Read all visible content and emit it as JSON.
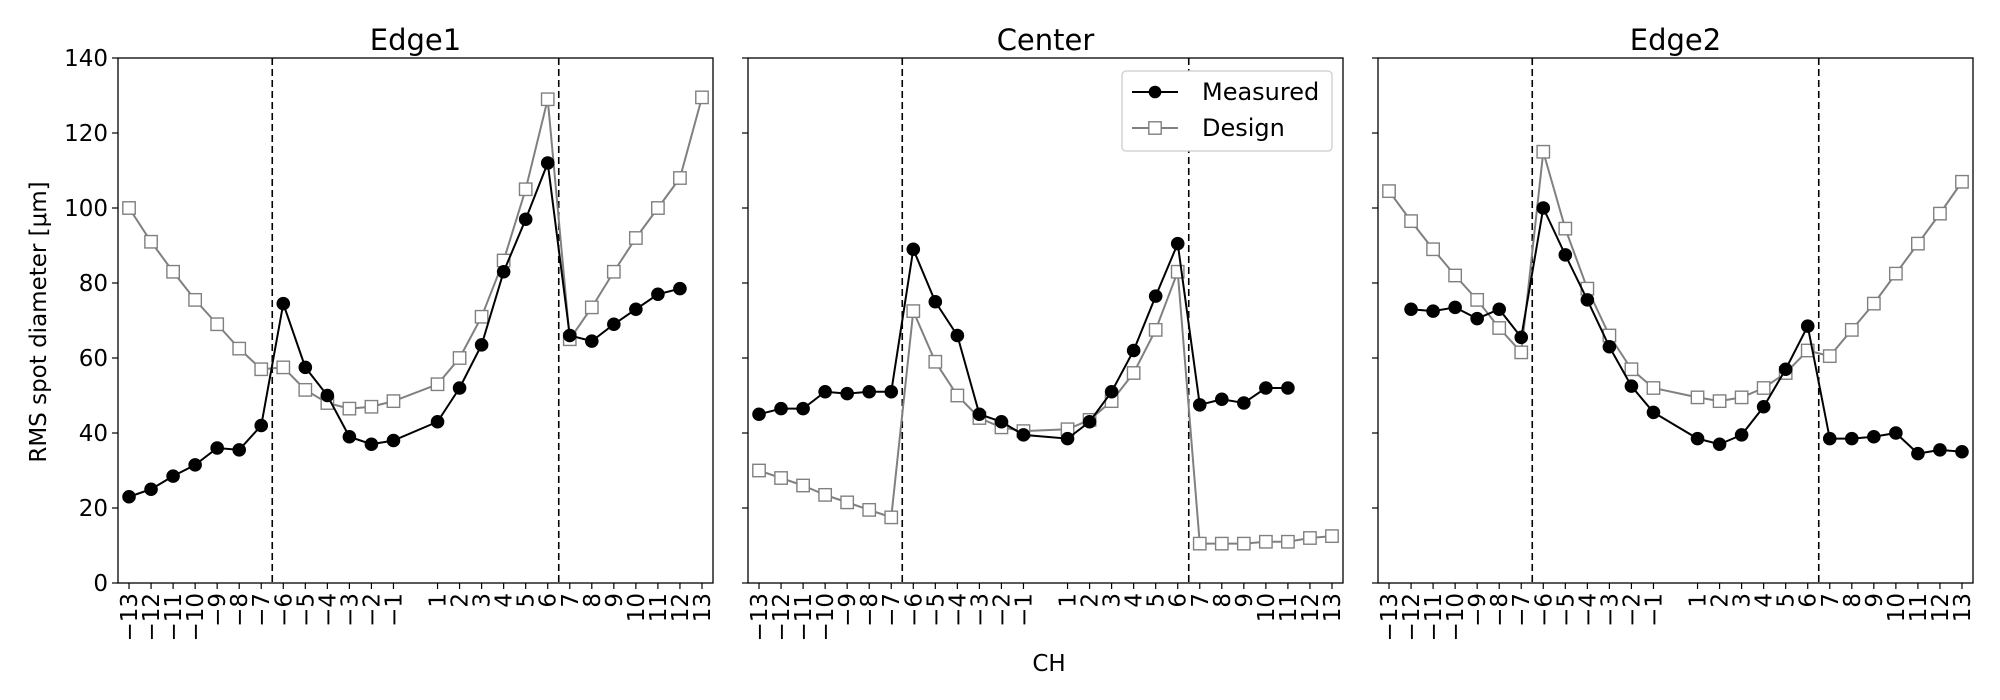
{
  "figure": {
    "ylabel": "RMS spot diameter [μm]",
    "xlabel": "CH"
  },
  "colors": {
    "measured": "#000000",
    "design": "#808080"
  },
  "legend": {
    "position": "top-right of Center panel",
    "measured_label": "Measured",
    "design_label": "Design"
  },
  "chart_data": [
    {
      "type": "line",
      "title": "Edge1",
      "ylim": [
        0,
        140
      ],
      "yticks": [
        0,
        20,
        40,
        60,
        80,
        100,
        120,
        140
      ],
      "xlim": [
        -13.5,
        13.5
      ],
      "xticks": [
        -13,
        -12,
        -11,
        -10,
        -9,
        -8,
        -7,
        -6,
        -5,
        -4,
        -3,
        -2,
        -1,
        1,
        2,
        3,
        4,
        5,
        6,
        7,
        8,
        9,
        10,
        11,
        12,
        13
      ],
      "xtick_labels": [
        "−13",
        "−12",
        "−11",
        "−10",
        "−9",
        "−8",
        "−7",
        "−6",
        "−5",
        "−4",
        "−3",
        "−2",
        "−1",
        "1",
        "2",
        "3",
        "4",
        "5",
        "6",
        "7",
        "8",
        "9",
        "10",
        "11",
        "12",
        "13"
      ],
      "vlines": [
        -6.5,
        6.5
      ],
      "series": [
        {
          "name": "Measured",
          "marker": "filled-circle",
          "x": [
            -13,
            -12,
            -11,
            -10,
            -9,
            -8,
            -7,
            -6,
            -5,
            -4,
            -3,
            -2,
            -1,
            1,
            2,
            3,
            4,
            5,
            6,
            7,
            8,
            9,
            10,
            11,
            12
          ],
          "y": [
            23,
            25,
            28.5,
            31.5,
            36,
            35.5,
            42,
            74.5,
            57.5,
            50,
            39,
            37,
            38,
            43,
            52,
            63.5,
            83,
            97,
            112,
            66,
            64.5,
            69,
            73,
            77,
            78.5
          ]
        },
        {
          "name": "Design",
          "marker": "open-square",
          "x": [
            -13,
            -12,
            -11,
            -10,
            -9,
            -8,
            -7,
            -6,
            -5,
            -4,
            -3,
            -2,
            -1,
            1,
            2,
            3,
            4,
            5,
            6,
            7,
            8,
            9,
            10,
            11,
            12,
            13
          ],
          "y": [
            100,
            91,
            83,
            75.5,
            69,
            62.5,
            57,
            57.5,
            51.5,
            48,
            46.5,
            47,
            48.5,
            53,
            60,
            71,
            86,
            105,
            129,
            65,
            73.5,
            83,
            92,
            100,
            108,
            129.5
          ]
        }
      ]
    },
    {
      "type": "line",
      "title": "Center",
      "ylim": [
        0,
        140
      ],
      "yticks": [
        0,
        20,
        40,
        60,
        80,
        100,
        120,
        140
      ],
      "xlim": [
        -13.5,
        13.5
      ],
      "xticks": [
        -13,
        -12,
        -11,
        -10,
        -9,
        -8,
        -7,
        -6,
        -5,
        -4,
        -3,
        -2,
        -1,
        1,
        2,
        3,
        4,
        5,
        6,
        7,
        8,
        9,
        10,
        11,
        12,
        13
      ],
      "xtick_labels": [
        "−13",
        "−12",
        "−11",
        "−10",
        "−9",
        "−8",
        "−7",
        "−6",
        "−5",
        "−4",
        "−3",
        "−2",
        "−1",
        "1",
        "2",
        "3",
        "4",
        "5",
        "6",
        "7",
        "8",
        "9",
        "10",
        "11",
        "12",
        "13"
      ],
      "vlines": [
        -6.5,
        6.5
      ],
      "series": [
        {
          "name": "Measured",
          "marker": "filled-circle",
          "x": [
            -13,
            -12,
            -11,
            -10,
            -9,
            -8,
            -7,
            -6,
            -5,
            -4,
            -3,
            -2,
            -1,
            1,
            2,
            3,
            4,
            5,
            6,
            7,
            8,
            9,
            10,
            11
          ],
          "y": [
            45,
            46.5,
            46.5,
            51,
            50.5,
            51,
            51,
            89,
            75,
            66,
            45,
            43,
            39.5,
            38.5,
            43,
            51,
            62,
            76.5,
            90.5,
            47.5,
            49,
            48,
            52,
            52
          ]
        },
        {
          "name": "Design",
          "marker": "open-square",
          "x": [
            -13,
            -12,
            -11,
            -10,
            -9,
            -8,
            -7,
            -6,
            -5,
            -4,
            -3,
            -2,
            -1,
            1,
            2,
            3,
            4,
            5,
            6,
            7,
            8,
            9,
            10,
            11,
            12,
            13
          ],
          "y": [
            30,
            28,
            26,
            23.5,
            21.5,
            19.5,
            17.5,
            72.5,
            59,
            50,
            44,
            41.5,
            40.5,
            41,
            43.5,
            48.5,
            56,
            67.5,
            83,
            10.5,
            10.5,
            10.5,
            11,
            11,
            12,
            12.5
          ]
        }
      ]
    },
    {
      "type": "line",
      "title": "Edge2",
      "ylim": [
        0,
        140
      ],
      "yticks": [
        0,
        20,
        40,
        60,
        80,
        100,
        120,
        140
      ],
      "xlim": [
        -13.5,
        13.5
      ],
      "xticks": [
        -13,
        -12,
        -11,
        -10,
        -9,
        -8,
        -7,
        -6,
        -5,
        -4,
        -3,
        -2,
        -1,
        1,
        2,
        3,
        4,
        5,
        6,
        7,
        8,
        9,
        10,
        11,
        12,
        13
      ],
      "xtick_labels": [
        "−13",
        "−12",
        "−11",
        "−10",
        "−9",
        "−8",
        "−7",
        "−6",
        "−5",
        "−4",
        "−3",
        "−2",
        "−1",
        "1",
        "2",
        "3",
        "4",
        "5",
        "6",
        "7",
        "8",
        "9",
        "10",
        "11",
        "12",
        "13"
      ],
      "vlines": [
        -6.5,
        6.5
      ],
      "series": [
        {
          "name": "Measured",
          "marker": "filled-circle",
          "x": [
            -12,
            -11,
            -10,
            -9,
            -8,
            -7,
            -6,
            -5,
            -4,
            -3,
            -2,
            -1,
            1,
            2,
            3,
            4,
            5,
            6,
            7,
            8,
            9,
            10,
            11,
            12,
            13
          ],
          "y": [
            73,
            72.5,
            73.5,
            70.5,
            73,
            65.5,
            100,
            87.5,
            75.5,
            63,
            52.5,
            45.5,
            38.5,
            37,
            39.5,
            47,
            57,
            68.5,
            38.5,
            38.5,
            39,
            40,
            34.5,
            35.5,
            35
          ]
        },
        {
          "name": "Design",
          "marker": "open-square",
          "x": [
            -13,
            -12,
            -11,
            -10,
            -9,
            -8,
            -7,
            -6,
            -5,
            -4,
            -3,
            -2,
            -1,
            1,
            2,
            3,
            4,
            5,
            6,
            7,
            8,
            9,
            10,
            11,
            12,
            13
          ],
          "y": [
            104.5,
            96.5,
            89,
            82,
            75.5,
            68,
            61.5,
            115,
            94.5,
            78.5,
            66,
            57,
            52,
            49.5,
            48.5,
            49.5,
            52,
            56,
            62,
            60.5,
            67.5,
            74.5,
            82.5,
            90.5,
            98.5,
            107
          ]
        }
      ]
    }
  ]
}
